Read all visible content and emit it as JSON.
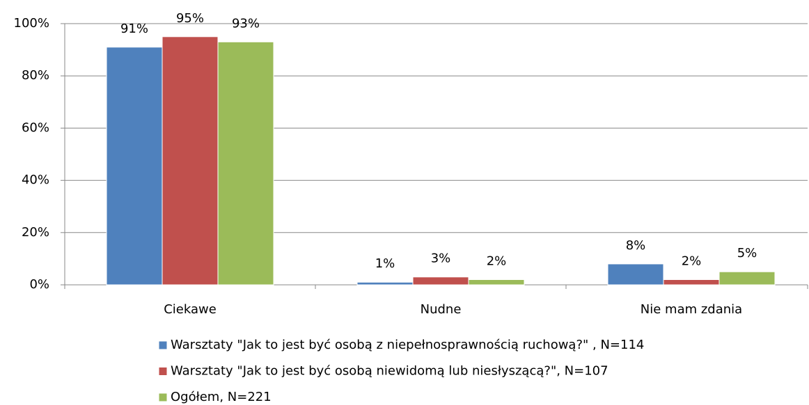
{
  "chart_data": {
    "type": "bar",
    "categories": [
      "Ciekawe",
      "Nudne",
      "Nie mam zdania"
    ],
    "series": [
      {
        "name": "Warsztaty \"Jak to jest być osobą z niepełnosprawnością ruchową?\" , N=114",
        "color": "#4f81bd",
        "values": [
          91,
          1,
          8
        ],
        "value_labels": [
          "91%",
          "1%",
          "8%"
        ]
      },
      {
        "name": "Warsztaty \"Jak to jest być osobą niewidomą lub niesłyszącą?\", N=107",
        "color": "#c0504d",
        "values": [
          95,
          3,
          2
        ],
        "value_labels": [
          "95%",
          "3%",
          "2%"
        ]
      },
      {
        "name": "Ogółem, N=221",
        "color": "#9bbb59",
        "values": [
          93,
          2,
          5
        ],
        "value_labels": [
          "93%",
          "2%",
          "5%"
        ]
      }
    ],
    "ylim": [
      0,
      100
    ],
    "yticks": [
      {
        "value": 0,
        "label": "0%"
      },
      {
        "value": 20,
        "label": "20%"
      },
      {
        "value": 40,
        "label": "40%"
      },
      {
        "value": 60,
        "label": "60%"
      },
      {
        "value": 80,
        "label": "80%"
      },
      {
        "value": 100,
        "label": "100%"
      }
    ],
    "grid": true,
    "legend": "bottom"
  }
}
